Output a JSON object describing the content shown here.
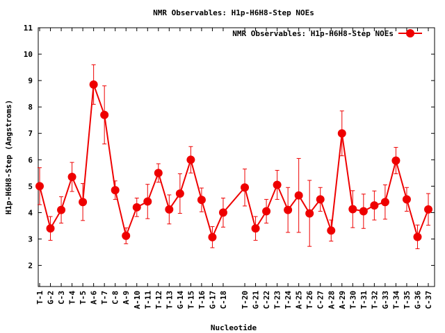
{
  "chart_data": {
    "type": "line",
    "title": "NMR Observables: H1p-H6H8-Step NOEs",
    "xlabel": "Nucleotide",
    "ylabel": "H1p-H6H8-Step (Angstroms)",
    "ylim": [
      1.2,
      11
    ],
    "yticks": [
      2,
      3,
      4,
      5,
      6,
      7,
      8,
      9,
      10,
      11
    ],
    "grid": false,
    "legend_position": "top-right",
    "series_color": "#ee0000",
    "series": [
      {
        "name": "NMR Observables: H1p-H6H8-Step NOEs",
        "points": [
          {
            "label": "T-1",
            "y": 5.0,
            "err": 0.7
          },
          {
            "label": "G-2",
            "y": 3.4,
            "err": 0.45
          },
          {
            "label": "C-3",
            "y": 4.1,
            "err": 0.5
          },
          {
            "label": "T-4",
            "y": 5.35,
            "err": 0.55
          },
          {
            "label": "T-5",
            "y": 4.4,
            "err": 0.7
          },
          {
            "label": "A-6",
            "y": 8.85,
            "err": 0.75
          },
          {
            "label": "T-7",
            "y": 7.7,
            "err": 1.1
          },
          {
            "label": "C-8",
            "y": 4.85,
            "err": 0.35
          },
          {
            "label": "A-9",
            "y": 3.12,
            "err": 0.3
          },
          {
            "label": "A-10",
            "y": 4.2,
            "err": 0.35
          },
          {
            "label": "T-11",
            "y": 4.42,
            "err": 0.65
          },
          {
            "label": "T-12",
            "y": 5.5,
            "err": 0.35
          },
          {
            "label": "T-13",
            "y": 4.12,
            "err": 0.55
          },
          {
            "label": "G-14",
            "y": 4.72,
            "err": 0.75
          },
          {
            "label": "T-15",
            "y": 6.0,
            "err": 0.5
          },
          {
            "label": "T-16",
            "y": 4.48,
            "err": 0.45
          },
          {
            "label": "G-17",
            "y": 3.07,
            "err": 0.4
          },
          {
            "label": "C-18",
            "y": 4.0,
            "err": 0.55
          },
          {
            "label": "T-20",
            "y": 4.95,
            "err": 0.7
          },
          {
            "label": "G-21",
            "y": 3.4,
            "err": 0.45
          },
          {
            "label": "C-22",
            "y": 4.05,
            "err": 0.45
          },
          {
            "label": "T-23",
            "y": 5.05,
            "err": 0.55
          },
          {
            "label": "T-24",
            "y": 4.1,
            "err": 0.85
          },
          {
            "label": "A-25",
            "y": 4.65,
            "err": 1.4
          },
          {
            "label": "T-26",
            "y": 3.97,
            "err": 1.25
          },
          {
            "label": "C-27",
            "y": 4.5,
            "err": 0.45
          },
          {
            "label": "A-28",
            "y": 3.32,
            "err": 0.4
          },
          {
            "label": "A-29",
            "y": 7.0,
            "err": 0.85
          },
          {
            "label": "T-30",
            "y": 4.13,
            "err": 0.7
          },
          {
            "label": "T-31",
            "y": 4.05,
            "err": 0.65
          },
          {
            "label": "T-32",
            "y": 4.27,
            "err": 0.55
          },
          {
            "label": "G-33",
            "y": 4.4,
            "err": 0.65
          },
          {
            "label": "T-34",
            "y": 5.97,
            "err": 0.5
          },
          {
            "label": "T-35",
            "y": 4.5,
            "err": 0.45
          },
          {
            "label": "G-36",
            "y": 3.08,
            "err": 0.45
          },
          {
            "label": "C-37",
            "y": 4.12,
            "err": 0.6
          }
        ]
      }
    ]
  }
}
